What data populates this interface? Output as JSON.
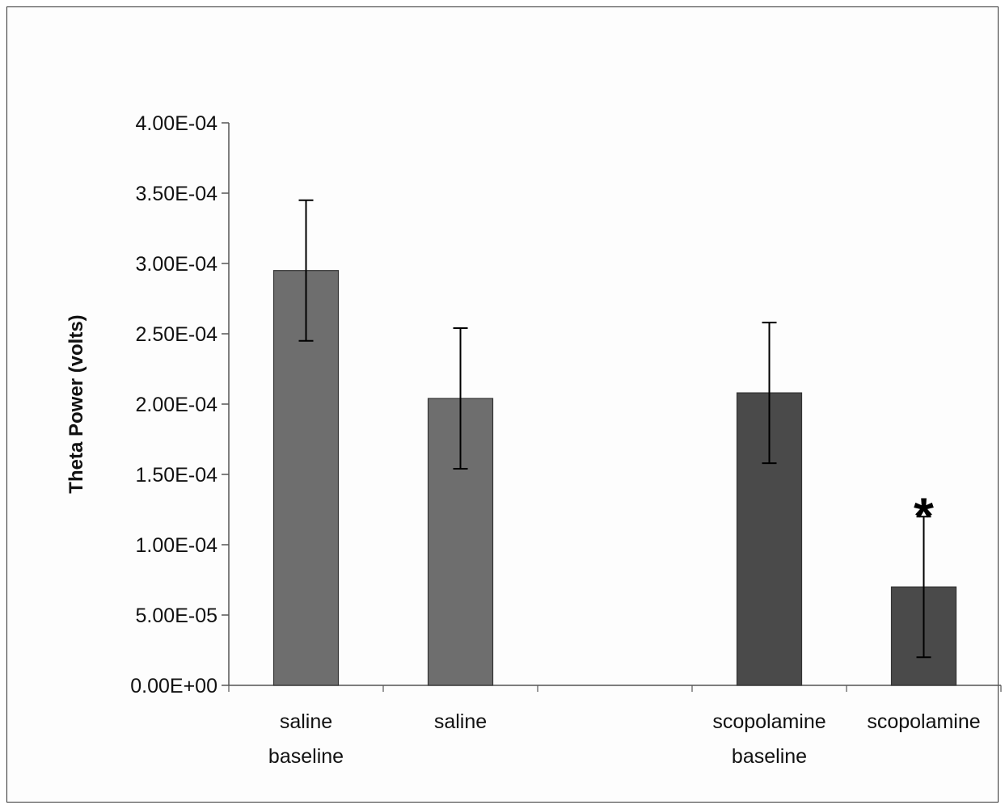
{
  "chart_data": {
    "type": "bar",
    "title": "",
    "xlabel": "",
    "ylabel": "Theta Power (volts)",
    "ylim": [
      0,
      0.0004
    ],
    "y_ticks": [
      {
        "value": 0,
        "label": "0.00E+00"
      },
      {
        "value": 5e-05,
        "label": "5.00E-05"
      },
      {
        "value": 0.0001,
        "label": "1.00E-04"
      },
      {
        "value": 0.00015,
        "label": "1.50E-04"
      },
      {
        "value": 0.0002,
        "label": "2.00E-04"
      },
      {
        "value": 0.00025,
        "label": "2.50E-04"
      },
      {
        "value": 0.0003,
        "label": "3.00E-04"
      },
      {
        "value": 0.00035,
        "label": "3.50E-04"
      },
      {
        "value": 0.0004,
        "label": "4.00E-04"
      }
    ],
    "grid": false,
    "legend": "none",
    "slot_count": 5,
    "bars": [
      {
        "category": [
          "saline",
          "baseline"
        ],
        "slot": 0,
        "value": 0.000295,
        "error": 5e-05,
        "color": "#6e6e6e"
      },
      {
        "category": [
          "saline"
        ],
        "slot": 1,
        "value": 0.000204,
        "error": 5e-05,
        "color": "#6e6e6e"
      },
      {
        "category": [
          "scopolamine",
          "baseline"
        ],
        "slot": 3,
        "value": 0.000208,
        "error": 5e-05,
        "color": "#4a4a4a"
      },
      {
        "category": [
          "scopolamine"
        ],
        "slot": 4,
        "value": 7e-05,
        "error": 5e-05,
        "color": "#4a4a4a"
      }
    ],
    "annotations": [
      {
        "text": "*",
        "slot": 4,
        "value": 0.000132
      }
    ]
  }
}
